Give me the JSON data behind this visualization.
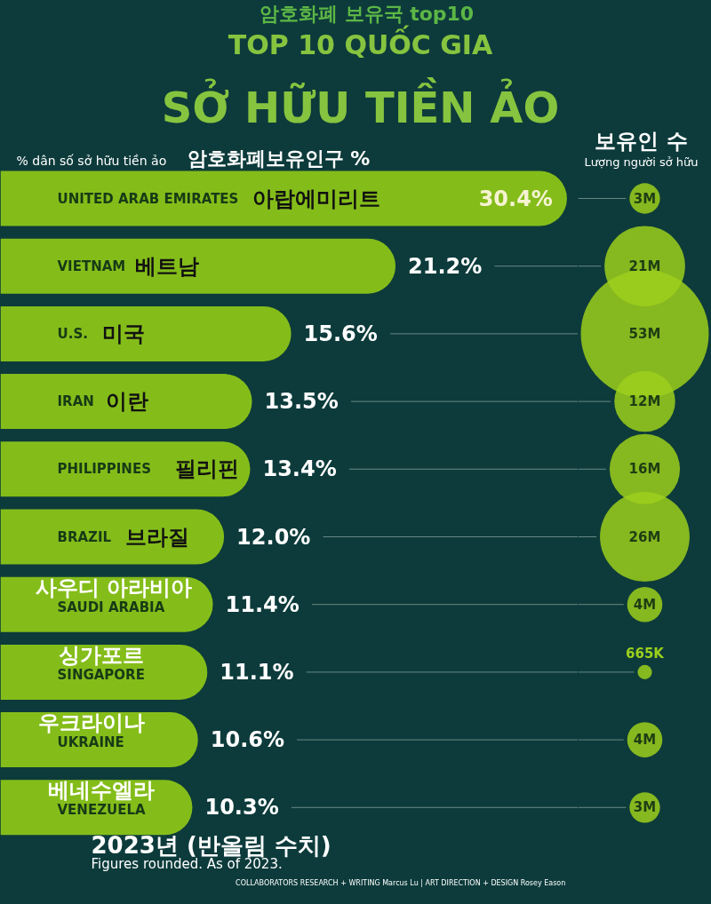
{
  "chart_data": [
    {
      "type": "bar",
      "orientation": "horizontal",
      "title": "TOP 10 QUỐC GIA\nSỞ HỮU TIỀN ẢO",
      "categories": [
        "UNITED ARAB EMIRATES",
        "VIETNAM",
        "U.S.",
        "IRAN",
        "PHILIPPINES",
        "BRAZIL",
        "SAUDI ARABIA",
        "SINGAPORE",
        "UKRAINE",
        "VENEZUELA"
      ],
      "xlim": [
        0,
        31
      ],
      "series": [
        {
          "name": "% dân số sở hữu tiền ảo",
          "color": "#84bd1a",
          "values": [
            30.4,
            21.2,
            15.6,
            13.5,
            13.4,
            12.0,
            11.4,
            11.1,
            10.6,
            10.3
          ],
          "value_labels": [
            "30.4%",
            "21.2%",
            "15.6%",
            "13.5%",
            "13.4%",
            "12.0%",
            "11.4%",
            "11.1%",
            "10.6%",
            "10.3%"
          ]
        }
      ],
      "annotations": [
        "암호화폐 보유국 top10",
        "암호화폐보유인구 %",
        {
          "text": "아랍에미리트",
          "y": "UNITED ARAB EMIRATES"
        },
        {
          "text": "베트남",
          "y": "VIETNAM"
        },
        {
          "text": "미국",
          "y": "U.S."
        },
        {
          "text": "이란",
          "y": "IRAN"
        },
        {
          "text": "필리핀",
          "y": "PHILIPPINES"
        },
        {
          "text": "브라질",
          "y": "BRAZIL"
        },
        {
          "text": "사우디 아라비아",
          "y": "SAUDI ARABIA"
        },
        {
          "text": "싱가포르",
          "y": "SINGAPORE"
        },
        {
          "text": "우크라이나",
          "y": "UKRAINE"
        },
        {
          "text": "베네수엘라",
          "y": "VENEZUELA"
        },
        "2023년 (반올림 수치)",
        "Figures rounded. As of 2023.",
        "COLLABORATORS   RESEARCH + WRITING Marcus Lu  |  ART DIRECTION + DESIGN Rosey Eason"
      ]
    },
    {
      "type": "other",
      "title": "보유인 수",
      "subtitle": "Lượng người sở hữu",
      "categories": [
        null,
        null,
        null,
        null,
        null,
        null,
        null,
        null,
        null,
        null
      ],
      "color": "#9ccf1c",
      "values": [
        3000000,
        21000000,
        53000000,
        12000000,
        16000000,
        26000000,
        4000000,
        665000,
        4000000,
        3000000
      ],
      "value_labels": [
        "3M",
        "21M",
        "53M",
        "12M",
        "16M",
        "26M",
        "4M",
        "665K",
        "4M",
        "3M"
      ]
    }
  ]
}
